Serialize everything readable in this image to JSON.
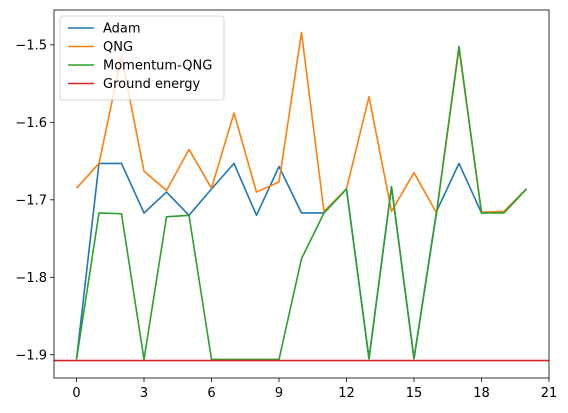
{
  "chart_data": {
    "type": "line",
    "title": "",
    "xlabel": "",
    "ylabel": "",
    "xlim": [
      -1,
      21
    ],
    "ylim": [
      -1.93,
      -1.455
    ],
    "xticks": [
      0,
      3,
      6,
      9,
      12,
      15,
      18,
      21
    ],
    "xtick_labels": [
      "0",
      "3",
      "6",
      "9",
      "12",
      "15",
      "18",
      "21"
    ],
    "yticks": [
      -1.9,
      -1.8,
      -1.7,
      -1.6,
      -1.5
    ],
    "ytick_labels": [
      "−1.9",
      "−1.8",
      "−1.7",
      "−1.6",
      "−1.5"
    ],
    "grid": false,
    "legend_position": "top-left",
    "x": [
      0,
      1,
      2,
      3,
      4,
      5,
      6,
      7,
      8,
      9,
      10,
      11,
      12,
      13,
      14,
      15,
      16,
      17,
      18,
      19,
      20
    ],
    "series": [
      {
        "name": "Adam",
        "color": "#1f77b4",
        "values": [
          -1.906,
          -1.653,
          -1.653,
          -1.717,
          -1.69,
          -1.72,
          -1.686,
          -1.653,
          -1.72,
          -1.657,
          -1.717,
          -1.717,
          -1.686,
          -1.905,
          -1.683,
          -1.905,
          -1.715,
          -1.653,
          -1.717,
          -1.715,
          -1.686
        ]
      },
      {
        "name": "QNG",
        "color": "#ff7f0e",
        "values": [
          -1.685,
          -1.653,
          -1.515,
          -1.663,
          -1.688,
          -1.635,
          -1.685,
          -1.588,
          -1.69,
          -1.677,
          -1.484,
          -1.715,
          -1.686,
          -1.567,
          -1.715,
          -1.665,
          -1.717,
          -1.505,
          -1.716,
          -1.715,
          -1.686
        ]
      },
      {
        "name": "Momentum-QNG",
        "color": "#2ca02c",
        "values": [
          -1.906,
          -1.717,
          -1.718,
          -1.906,
          -1.722,
          -1.72,
          -1.906,
          -1.906,
          -1.906,
          -1.906,
          -1.776,
          -1.717,
          -1.686,
          -1.905,
          -1.683,
          -1.905,
          -1.717,
          -1.502,
          -1.717,
          -1.717,
          -1.686
        ]
      },
      {
        "name": "Ground energy",
        "color": "#d62728",
        "type": "hline",
        "value": -1.9075
      }
    ]
  }
}
